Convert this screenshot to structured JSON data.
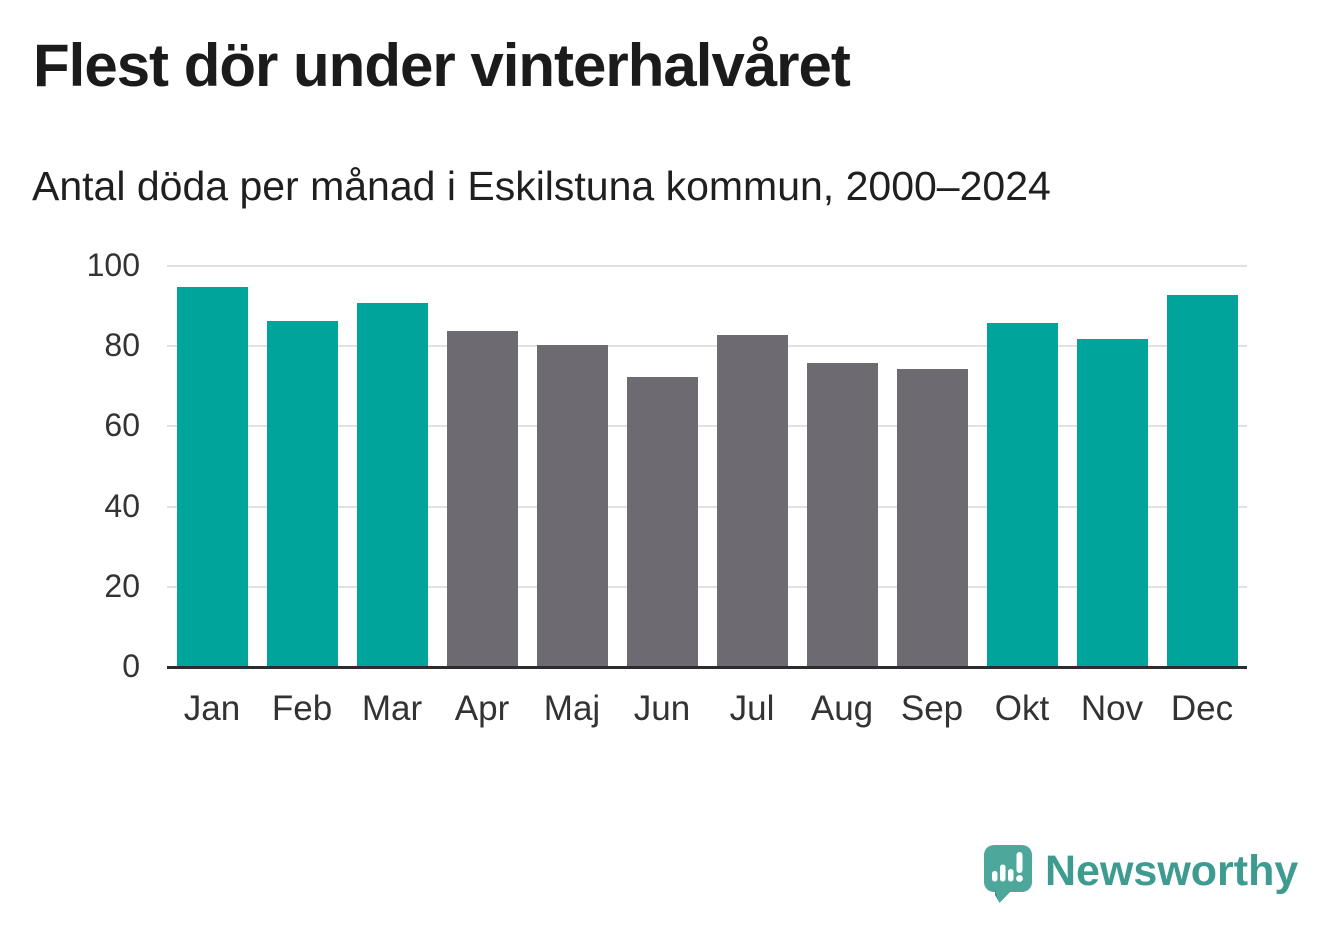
{
  "chart_data": {
    "type": "bar",
    "title": "Flest dör under vinterhalvåret",
    "subtitle": "Antal döda per månad i Eskilstuna kommun, 2000–2024",
    "categories": [
      "Jan",
      "Feb",
      "Mar",
      "Apr",
      "Maj",
      "Jun",
      "Jul",
      "Aug",
      "Sep",
      "Okt",
      "Nov",
      "Dec"
    ],
    "values": [
      94.5,
      86,
      90.5,
      83.5,
      80,
      72,
      82.5,
      75.5,
      74,
      85.5,
      81.5,
      92.5
    ],
    "bar_color_keys": [
      "winter",
      "winter",
      "winter",
      "summer",
      "summer",
      "summer",
      "summer",
      "summer",
      "summer",
      "winter",
      "winter",
      "winter"
    ],
    "palette": {
      "winter": "#00A49A",
      "summer": "#6E6A72"
    },
    "xlabel": "",
    "ylabel": "",
    "ylim": [
      0,
      100
    ],
    "yticks": [
      0,
      20,
      40,
      60,
      80,
      100
    ],
    "grid": true,
    "legend": false,
    "grid_color": "#e1e1e1",
    "axis_color": "#2d2d2d",
    "tick_label_color": "#333333"
  },
  "branding": {
    "logo_text": "Newsworthy",
    "logo_text_color": "#3E9B90",
    "logo_mark_color": "#4EA79B",
    "logo_mark_shadow_color": "#3C8C84",
    "logo_mark_glyph": "bar-chart-exclamation-speech-bubble"
  }
}
